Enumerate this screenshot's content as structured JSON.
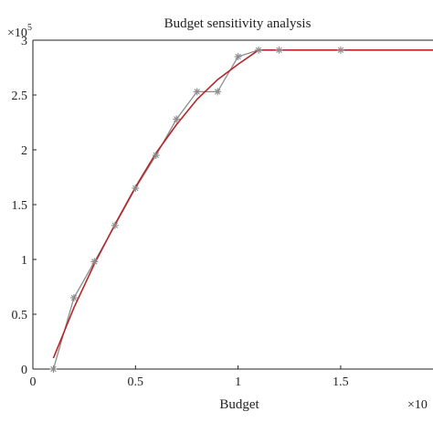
{
  "chart_data": {
    "type": "line",
    "title": "Budget sensitivity analysis",
    "xlabel": "Budget",
    "ylabel": "",
    "x_multiplier": "×10",
    "y_multiplier_base": "×10",
    "y_multiplier_exp": "5",
    "xlim": [
      0,
      1.95
    ],
    "ylim": [
      0,
      3
    ],
    "xticks": [
      "0",
      "0.5",
      "1",
      "1.5"
    ],
    "yticks": [
      "0",
      "0.5",
      "1",
      "1.5",
      "2",
      "2.5",
      "3"
    ],
    "grid": false,
    "colors": {
      "markers": "#8c8c8c",
      "fit": "#b5262b",
      "axis": "#222222"
    },
    "series": [
      {
        "values_unit_note": "y in units of 10^5",
        "x": [
          0.1,
          0.2,
          0.3,
          0.4,
          0.5,
          0.6,
          0.7,
          0.8,
          0.9,
          1.0,
          1.1,
          1.2,
          1.5,
          2.0
        ],
        "y": [
          0.0,
          0.65,
          0.98,
          1.31,
          1.65,
          1.95,
          2.28,
          2.53,
          2.53,
          2.85,
          2.91,
          2.91,
          2.91,
          2.91
        ],
        "marker": "asterisk"
      },
      {
        "x": [
          0.1,
          0.2,
          0.3,
          0.4,
          0.5,
          0.6,
          0.7,
          0.8,
          0.9,
          1.0,
          1.1,
          1.2,
          1.5,
          2.0
        ],
        "y": [
          0.1,
          0.56,
          0.96,
          1.32,
          1.66,
          1.97,
          2.23,
          2.46,
          2.64,
          2.78,
          2.91,
          2.91,
          2.91,
          2.91
        ],
        "marker": "none"
      }
    ]
  }
}
